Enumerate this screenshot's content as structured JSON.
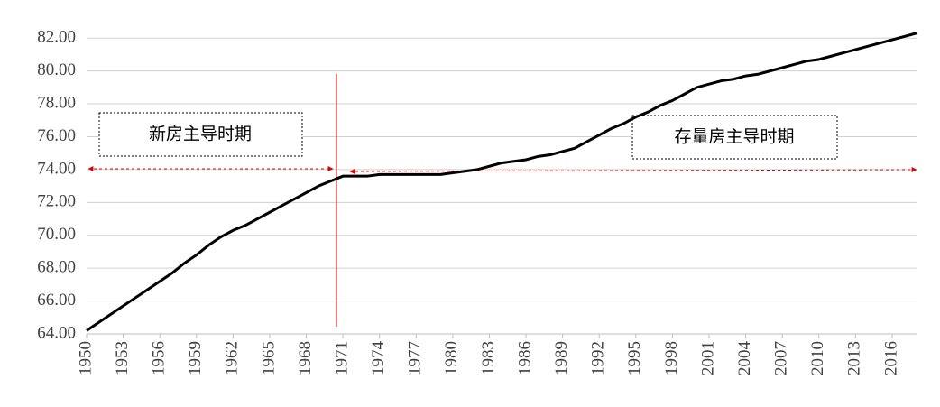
{
  "chart_data": {
    "type": "line",
    "x": [
      1950,
      1951,
      1952,
      1953,
      1954,
      1955,
      1956,
      1957,
      1958,
      1959,
      1960,
      1961,
      1962,
      1963,
      1964,
      1965,
      1966,
      1967,
      1968,
      1969,
      1970,
      1971,
      1972,
      1973,
      1974,
      1975,
      1976,
      1977,
      1978,
      1979,
      1980,
      1981,
      1982,
      1983,
      1984,
      1985,
      1986,
      1987,
      1988,
      1989,
      1990,
      1991,
      1992,
      1993,
      1994,
      1995,
      1996,
      1997,
      1998,
      1999,
      2000,
      2001,
      2002,
      2003,
      2004,
      2005,
      2006,
      2007,
      2008,
      2009,
      2010,
      2011,
      2012,
      2013,
      2014,
      2015,
      2016,
      2017,
      2018
    ],
    "series": [
      {
        "color": "#000000",
        "values": [
          64.2,
          64.7,
          65.2,
          65.7,
          66.2,
          66.7,
          67.2,
          67.7,
          68.3,
          68.8,
          69.4,
          69.9,
          70.3,
          70.6,
          71.0,
          71.4,
          71.8,
          72.2,
          72.6,
          73.0,
          73.3,
          73.6,
          73.6,
          73.6,
          73.7,
          73.7,
          73.7,
          73.7,
          73.7,
          73.7,
          73.8,
          73.9,
          74.0,
          74.2,
          74.4,
          74.5,
          74.6,
          74.8,
          74.9,
          75.1,
          75.3,
          75.7,
          76.1,
          76.5,
          76.8,
          77.2,
          77.5,
          77.9,
          78.2,
          78.6,
          79.0,
          79.2,
          79.4,
          79.5,
          79.7,
          79.8,
          80.0,
          80.2,
          80.4,
          80.6,
          80.7,
          80.9,
          81.1,
          81.3,
          81.5,
          81.7,
          81.9,
          82.1,
          82.3
        ]
      }
    ],
    "xlim": [
      1950,
      2018
    ],
    "xticks": [
      1950,
      1953,
      1956,
      1959,
      1962,
      1965,
      1968,
      1971,
      1974,
      1977,
      1980,
      1983,
      1986,
      1989,
      1992,
      1995,
      1998,
      2001,
      2004,
      2007,
      2010,
      2013,
      2016
    ],
    "ylim": [
      64,
      83
    ],
    "yticks": [
      {
        "value": 64,
        "label": "64.00"
      },
      {
        "value": 66,
        "label": "66.00"
      },
      {
        "value": 68,
        "label": "68.00"
      },
      {
        "value": 70,
        "label": "70.00"
      },
      {
        "value": 72,
        "label": "72.00"
      },
      {
        "value": 74,
        "label": "74.00"
      },
      {
        "value": 76,
        "label": "76.00"
      },
      {
        "value": 78,
        "label": "78.00"
      },
      {
        "value": 80,
        "label": "80.00"
      },
      {
        "value": 82,
        "label": "82.00"
      }
    ],
    "grid": true,
    "annotations": [
      "新房主导时期",
      "存量房主导时期"
    ]
  }
}
